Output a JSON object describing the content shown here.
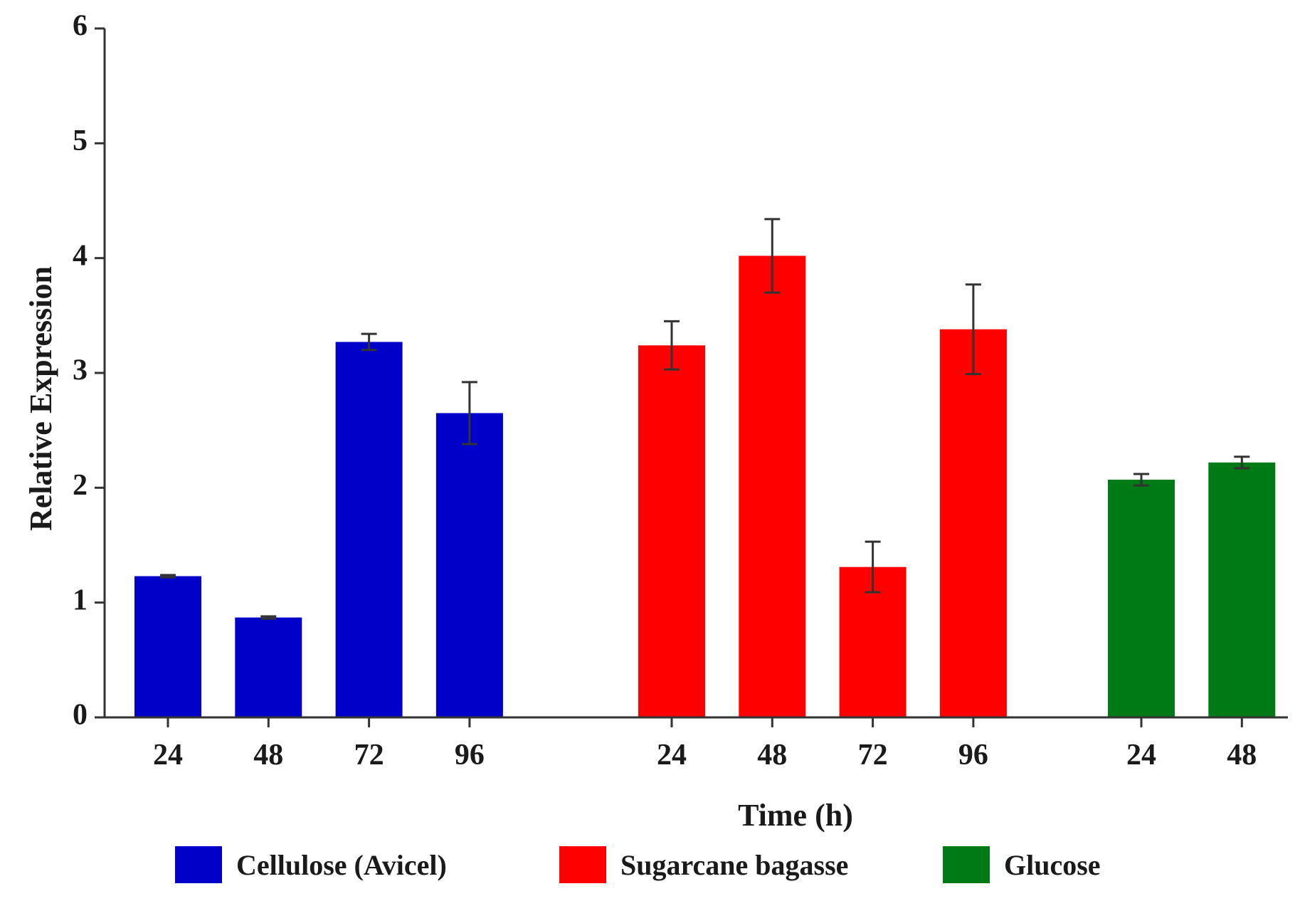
{
  "chart_data": {
    "type": "bar",
    "title": "",
    "xlabel": "Time (h)",
    "ylabel": "Relative Expression",
    "ylim": [
      0,
      6
    ],
    "yticks": [
      "0",
      "1",
      "2",
      "3",
      "4",
      "5",
      "6"
    ],
    "grid": false,
    "legend_position": "bottom",
    "groups": [
      {
        "name": "Cellulose (Avicel)",
        "color": "#0000c8",
        "categories": [
          "24",
          "48",
          "72",
          "96"
        ],
        "values": [
          1.23,
          0.87,
          3.27,
          2.65
        ],
        "errors": [
          0.01,
          0.01,
          0.07,
          0.27
        ]
      },
      {
        "name": "Sugarcane bagasse",
        "color": "#ff0000",
        "categories": [
          "24",
          "48",
          "72",
          "96"
        ],
        "values": [
          3.24,
          4.02,
          1.31,
          3.38
        ],
        "errors": [
          0.21,
          0.32,
          0.22,
          0.39
        ]
      },
      {
        "name": "Glucose",
        "color": "#007a14",
        "categories": [
          "24",
          "48"
        ],
        "values": [
          2.07,
          2.22
        ],
        "errors": [
          0.05,
          0.05
        ]
      }
    ]
  }
}
